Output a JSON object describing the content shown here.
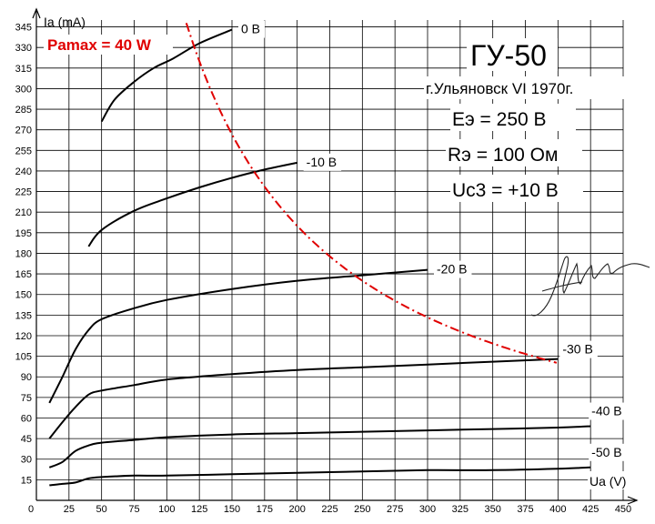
{
  "chart_data": {
    "type": "line",
    "title": "ГУ-50",
    "subtitle": "г.Ульяновск VI 1970г.",
    "params": [
      "Eэ = 250 В",
      "Rэ = 100 Ом",
      "Uс3 = +10 В"
    ],
    "pmax_label": "Pamax = 40 W",
    "xlabel": "Ua (V)",
    "ylabel": "Ia (mA)",
    "xlim": [
      0,
      450
    ],
    "ylim": [
      0,
      350
    ],
    "xticks": [
      0,
      25,
      50,
      75,
      100,
      125,
      150,
      175,
      200,
      225,
      250,
      275,
      300,
      325,
      350,
      375,
      400,
      425,
      450
    ],
    "yticks": [
      15,
      30,
      45,
      60,
      75,
      90,
      105,
      120,
      135,
      150,
      165,
      180,
      195,
      210,
      225,
      240,
      255,
      270,
      285,
      300,
      315,
      330,
      345
    ],
    "grid": true,
    "colors": {
      "curves": "#000000",
      "pmax": "#e00000",
      "grid": "#000000"
    },
    "series": [
      {
        "name": "0 В",
        "x": [
          50,
          60,
          75,
          90,
          105,
          125,
          150
        ],
        "y": [
          276,
          292,
          305,
          315,
          322,
          333,
          343
        ]
      },
      {
        "name": "-10 В",
        "x": [
          40,
          50,
          75,
          100,
          125,
          150,
          175,
          200
        ],
        "y": [
          185,
          197,
          211,
          220,
          228,
          235,
          241,
          246
        ]
      },
      {
        "name": "-20 В",
        "x": [
          10,
          20,
          30,
          40,
          50,
          75,
          100,
          150,
          200,
          250,
          300
        ],
        "y": [
          71,
          90,
          110,
          124,
          132,
          140,
          146,
          154,
          160,
          164,
          168
        ]
      },
      {
        "name": "-30 В",
        "x": [
          10,
          20,
          30,
          40,
          50,
          75,
          100,
          150,
          200,
          250,
          300,
          350,
          400
        ],
        "y": [
          45,
          57,
          68,
          77,
          80,
          84,
          88,
          92,
          95,
          97,
          99,
          101,
          103
        ]
      },
      {
        "name": "-40 В",
        "x": [
          10,
          20,
          30,
          40,
          50,
          75,
          100,
          150,
          200,
          250,
          300,
          350,
          400,
          425
        ],
        "y": [
          24,
          28,
          36,
          40,
          42,
          44,
          46,
          48,
          49,
          50,
          51,
          52,
          53,
          54
        ]
      },
      {
        "name": "-50 В",
        "x": [
          10,
          20,
          30,
          40,
          50,
          75,
          100,
          150,
          200,
          250,
          300,
          350,
          400,
          425
        ],
        "y": [
          11,
          12,
          13,
          16,
          17,
          18,
          18,
          19,
          20,
          21,
          22,
          22,
          23,
          24
        ]
      }
    ],
    "pmax_curve": {
      "name": "Pamax = 40 W",
      "power_w": 40,
      "x_from": 115,
      "x_to": 400
    }
  }
}
